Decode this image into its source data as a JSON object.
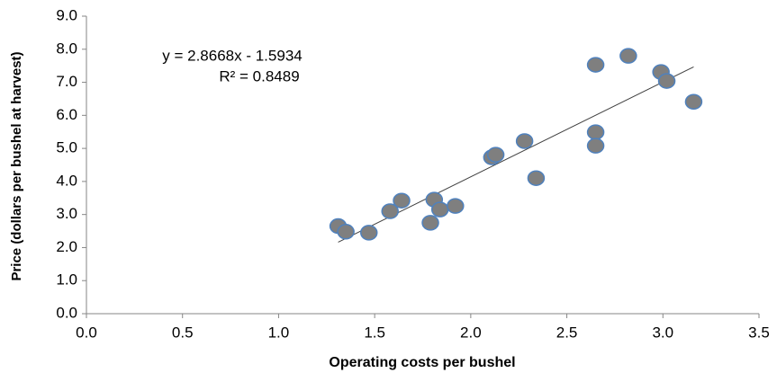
{
  "chart_data": {
    "type": "scatter",
    "x_label": "Operating costs per bushel",
    "y_label": "Price (dollars per bushel at harvest)",
    "x": [
      1.31,
      1.35,
      1.47,
      1.58,
      1.64,
      1.79,
      1.81,
      1.84,
      1.92,
      2.11,
      2.13,
      2.28,
      2.34,
      2.65,
      2.65,
      2.65,
      2.82,
      2.99,
      3.02,
      3.16
    ],
    "values": [
      2.65,
      2.48,
      2.45,
      3.1,
      3.42,
      2.75,
      3.45,
      3.15,
      3.26,
      4.73,
      4.81,
      5.22,
      4.1,
      7.53,
      5.49,
      5.08,
      7.8,
      7.31,
      7.04,
      6.41
    ],
    "color": "#7f7f7f",
    "edge_color": "#4f81bd",
    "trendline": {
      "slope": 2.8668,
      "intercept": -1.5934,
      "label": "y = 2.8668x - 1.5934",
      "r2_label": "R² = 0.8489",
      "color": "#404040"
    },
    "xlim": [
      0,
      3.5
    ],
    "xticks": [
      {
        "value": 0,
        "label": "0.0"
      },
      0.5,
      {
        "value": 1,
        "label": "1.0"
      },
      1.5,
      {
        "value": 2,
        "label": "2.0"
      },
      2.5,
      {
        "value": 3,
        "label": "3.0"
      },
      3.5
    ],
    "ylim": [
      0,
      9
    ],
    "yticks": [
      {
        "value": 0,
        "label": "0.0"
      },
      {
        "value": 1,
        "label": "1.0"
      },
      {
        "value": 2,
        "label": "2.0"
      },
      {
        "value": 3,
        "label": "3.0"
      },
      {
        "value": 4,
        "label": "4.0"
      },
      {
        "value": 5,
        "label": "5.0"
      },
      {
        "value": 6,
        "label": "6.0"
      },
      {
        "value": 7,
        "label": "7.0"
      },
      {
        "value": 8,
        "label": "8.0"
      },
      {
        "value": 9,
        "label": "9.0"
      }
    ],
    "grid": false
  }
}
